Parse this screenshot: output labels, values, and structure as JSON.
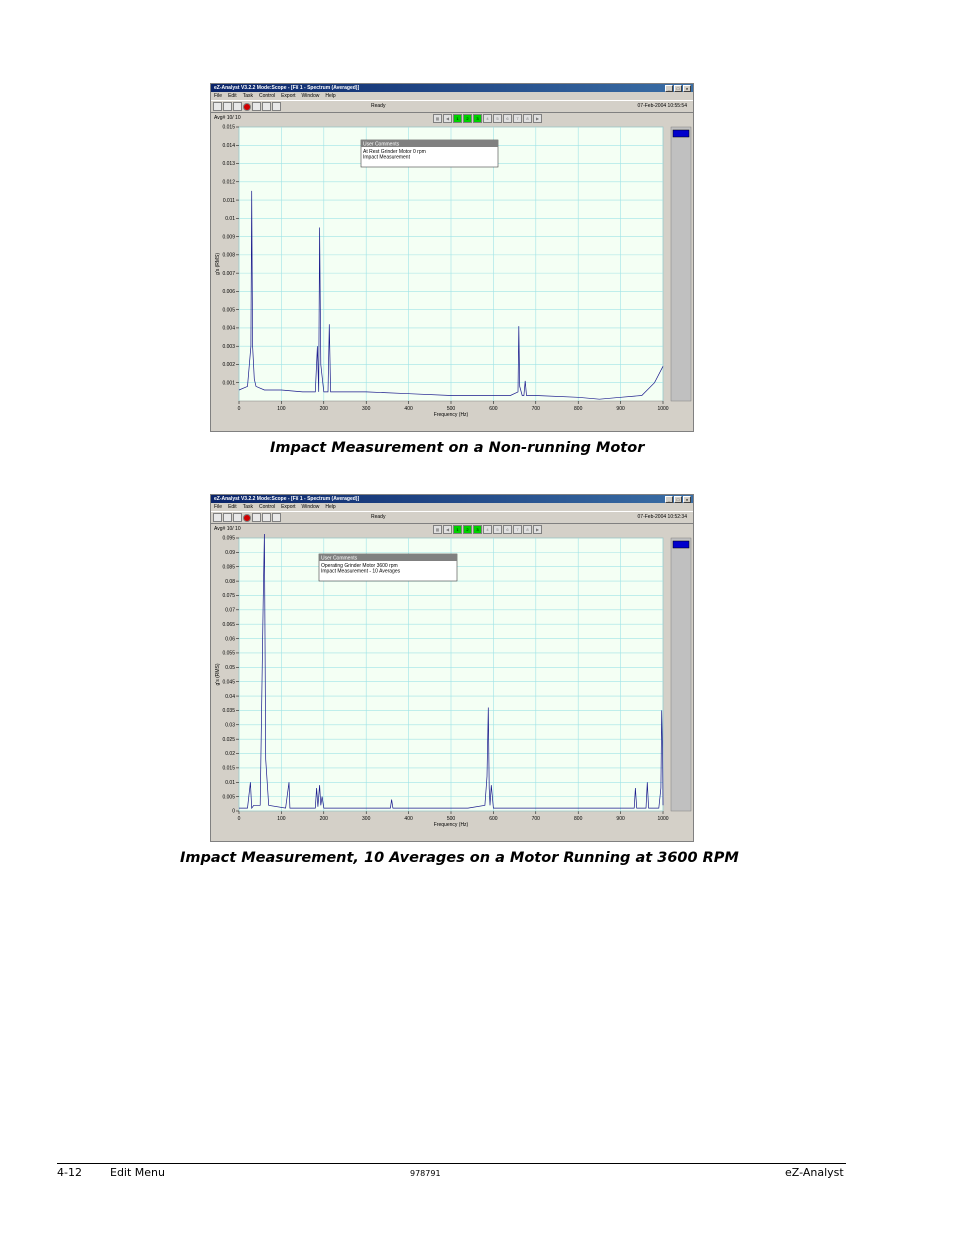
{
  "screenshots": [
    {
      "title": "eZ-Analyst  V3.2.2  Mode:Scope - [F¥ 1 - Spectrum (Averaged)]",
      "menu": [
        "File",
        "Edit",
        "Task",
        "Control",
        "Export",
        "Window",
        "Help"
      ],
      "status": "Ready",
      "datetime": "07-Feb-2004 10:55:54",
      "avg": "Avg# 10/ 10",
      "comment_title": "User Comments",
      "comments": [
        "At Rest Grinder Motor  0 rpm",
        "Impact Measurement"
      ],
      "xlabel": "Frequency (Hz)",
      "ylabel": "g's (RMS)"
    },
    {
      "title": "eZ-Analyst  V3.2.2  Mode:Scope - [F¥ 1 - Spectrum (Averaged)]",
      "menu": [
        "File",
        "Edit",
        "Task",
        "Control",
        "Export",
        "Window",
        "Help"
      ],
      "status": "Ready",
      "datetime": "07-Feb-2004 10:52:34",
      "avg": "Avg# 10/ 10",
      "comment_title": "User Comments",
      "comments": [
        "Operating Grinder Motor  3600 rpm",
        "Impact Measurement - 10 Averages"
      ],
      "xlabel": "Frequency (Hz)",
      "ylabel": "g's (RMS)"
    }
  ],
  "captions": [
    "Impact Measurement on a Non-running Motor",
    "Impact Measurement, 10 Averages on a Motor Running at 3600 RPM"
  ],
  "footer": {
    "left_num": "4-12",
    "left_title": "Edit Menu",
    "center": "978791",
    "right": "eZ-Analyst"
  },
  "chart_data": [
    {
      "type": "line",
      "xlim": [
        0,
        1000
      ],
      "ylim": [
        0,
        0.015
      ],
      "xticks": [
        0,
        100,
        200,
        300,
        400,
        500,
        600,
        700,
        800,
        900,
        1000
      ],
      "yticks": [
        0.001,
        0.002,
        0.003,
        0.004,
        0.005,
        0.006,
        0.007,
        0.008,
        0.009,
        0.01,
        0.011,
        0.012,
        0.013,
        0.014,
        0.015
      ],
      "ytick_labels": [
        "0.001",
        "0.002",
        "0.003",
        "0.004",
        "0.005",
        "0.006",
        "0.007",
        "0.008",
        "0.009",
        "0.01",
        "0.011",
        "0.012",
        "0.013",
        "0.014",
        "0.015"
      ],
      "xlabel": "Frequency (Hz)",
      "ylabel": "g's (RMS)",
      "grid": true,
      "series": [
        {
          "x": [
            0,
            20,
            28,
            30,
            32,
            36,
            40,
            60,
            100,
            150,
            180,
            185,
            188,
            190,
            193,
            200,
            205,
            210,
            213,
            216,
            230,
            300,
            400,
            500,
            600,
            640,
            658,
            660,
            662,
            668,
            672,
            675,
            678,
            700,
            800,
            850,
            900,
            950,
            980,
            1000
          ],
          "y": [
            0.0006,
            0.0008,
            0.003,
            0.0115,
            0.003,
            0.0012,
            0.0008,
            0.0006,
            0.0006,
            0.0005,
            0.0005,
            0.003,
            0.0005,
            0.0095,
            0.002,
            0.0005,
            0.0005,
            0.0005,
            0.0042,
            0.0005,
            0.0005,
            0.0005,
            0.0004,
            0.0003,
            0.0003,
            0.0003,
            0.0005,
            0.0041,
            0.0008,
            0.0003,
            0.0003,
            0.0011,
            0.0003,
            0.0003,
            0.0002,
            0.0001,
            0.0002,
            0.0003,
            0.001,
            0.0019
          ]
        }
      ]
    },
    {
      "type": "line",
      "xlim": [
        0,
        1000
      ],
      "ylim": [
        0,
        0.095
      ],
      "xticks": [
        0,
        100,
        200,
        300,
        400,
        500,
        600,
        700,
        800,
        900,
        1000
      ],
      "yticks": [
        0,
        0.005,
        0.01,
        0.015,
        0.02,
        0.025,
        0.03,
        0.035,
        0.04,
        0.045,
        0.05,
        0.055,
        0.06,
        0.065,
        0.07,
        0.075,
        0.08,
        0.085,
        0.09,
        0.095
      ],
      "ytick_labels": [
        "0",
        "0.005",
        "0.01",
        "0.015",
        "0.02",
        "0.025",
        "0.03",
        "0.035",
        "0.04",
        "0.045",
        "0.05",
        "0.055",
        "0.06",
        "0.065",
        "0.07",
        "0.075",
        "0.08",
        "0.085",
        "0.09",
        "0.095"
      ],
      "xlabel": "Frequency (Hz)",
      "ylabel": "g's (RMS)",
      "grid": true,
      "series": [
        {
          "x": [
            0,
            20,
            27,
            30,
            35,
            50,
            57,
            60,
            63,
            70,
            110,
            118,
            120,
            122,
            130,
            180,
            183,
            186,
            190,
            193,
            196,
            200,
            300,
            357,
            360,
            363,
            400,
            440,
            480,
            540,
            580,
            585,
            588,
            590,
            592,
            595,
            600,
            650,
            700,
            750,
            800,
            830,
            900,
            932,
            935,
            938,
            950,
            960,
            963,
            966,
            990,
            995,
            997,
            999,
            1000
          ],
          "y": [
            0.001,
            0.001,
            0.01,
            0.001,
            0.002,
            0.002,
            0.073,
            0.097,
            0.018,
            0.002,
            0.001,
            0.01,
            0.001,
            0.001,
            0.001,
            0.001,
            0.008,
            0.0015,
            0.009,
            0.002,
            0.005,
            0.001,
            0.001,
            0.001,
            0.004,
            0.001,
            0.001,
            0.001,
            0.001,
            0.001,
            0.002,
            0.012,
            0.036,
            0.008,
            0.002,
            0.009,
            0.001,
            0.001,
            0.001,
            0.001,
            0.001,
            0.001,
            0.001,
            0.001,
            0.008,
            0.001,
            0.001,
            0.001,
            0.01,
            0.001,
            0.001,
            0.008,
            0.035,
            0.02,
            0.002
          ]
        }
      ]
    }
  ]
}
